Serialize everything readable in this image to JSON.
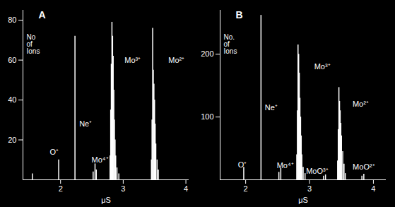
{
  "chart_data": [
    {
      "type": "bar",
      "title": "A",
      "x_label": "μS",
      "y_label": "No of Ions",
      "color": "#ffffff",
      "x": [
        1.55,
        1.97,
        2.23,
        2.52,
        2.55,
        2.57,
        2.79,
        2.8,
        2.81,
        2.82,
        2.83,
        2.84,
        2.85,
        2.86,
        2.87,
        2.88,
        2.9,
        2.93,
        3.45,
        3.46,
        3.47,
        3.48,
        3.49,
        3.5,
        3.51,
        3.52,
        3.54,
        3.56
      ],
      "values": [
        3,
        10,
        72,
        4,
        8,
        5,
        12,
        35,
        58,
        79,
        72,
        62,
        45,
        30,
        20,
        12,
        6,
        3,
        10,
        30,
        76,
        55,
        48,
        40,
        28,
        18,
        10,
        5
      ],
      "xlim": [
        1.4,
        4.05
      ],
      "ylim": [
        0,
        85
      ],
      "xticks": [
        2,
        3,
        4
      ],
      "yticks": [
        20,
        40,
        60,
        80
      ],
      "annotations": [
        {
          "text": "O⁺",
          "x": 1.9,
          "y": 14
        },
        {
          "text": "Ne⁺",
          "x": 2.4,
          "y": 28
        },
        {
          "text": "Mo⁴⁺",
          "x": 2.63,
          "y": 10
        },
        {
          "text": "Mo³⁺",
          "x": 3.15,
          "y": 60
        },
        {
          "text": "Mo²⁺",
          "x": 3.85,
          "y": 60
        }
      ]
    },
    {
      "type": "bar",
      "title": "B",
      "x_label": "μS",
      "y_label": "No. of Ions",
      "color": "#ffffff",
      "x": [
        1.97,
        2.24,
        2.52,
        2.55,
        2.8,
        2.81,
        2.82,
        2.83,
        2.84,
        2.85,
        2.86,
        2.87,
        2.88,
        2.9,
        2.93,
        3.22,
        3.25,
        3.44,
        3.45,
        3.46,
        3.47,
        3.48,
        3.49,
        3.5,
        3.52,
        3.54,
        3.56,
        3.82,
        3.85
      ],
      "values": [
        20,
        262,
        12,
        18,
        40,
        110,
        215,
        200,
        170,
        130,
        100,
        70,
        40,
        20,
        10,
        6,
        8,
        30,
        80,
        147,
        125,
        110,
        90,
        70,
        45,
        25,
        10,
        6,
        9
      ],
      "xlim": [
        1.6,
        4.2
      ],
      "ylim": [
        0,
        270
      ],
      "xticks": [
        2,
        3,
        4
      ],
      "yticks": [
        100,
        200
      ],
      "annotations": [
        {
          "text": "O⁺",
          "x": 1.95,
          "y": 24
        },
        {
          "text": "Ne⁺",
          "x": 2.4,
          "y": 115
        },
        {
          "text": "Mo⁴⁺",
          "x": 2.62,
          "y": 22
        },
        {
          "text": "Mo³⁺",
          "x": 3.2,
          "y": 180
        },
        {
          "text": "MoO³⁺",
          "x": 3.12,
          "y": 14
        },
        {
          "text": "Mo²⁺",
          "x": 3.8,
          "y": 120
        },
        {
          "text": "MoO²⁺",
          "x": 3.85,
          "y": 20
        }
      ]
    }
  ]
}
